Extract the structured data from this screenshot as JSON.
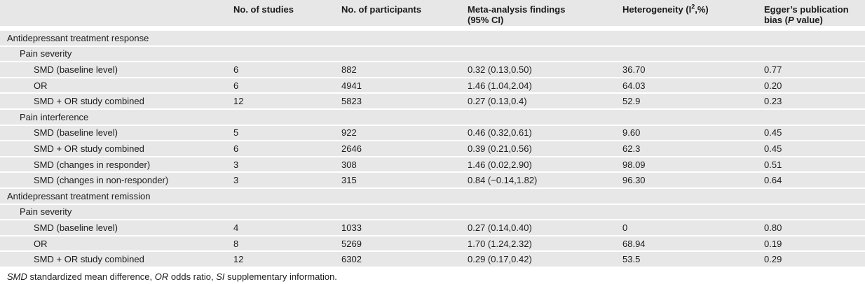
{
  "colors": {
    "row_background": "#e7e7e7",
    "separator": "#ffffff",
    "text": "#1c1c1c"
  },
  "header": {
    "col_label": "",
    "col_studies": "No. of studies",
    "col_participants": "No. of participants",
    "col_findings_line1": "Meta-analysis findings",
    "col_findings_line2": "(95% CI)",
    "col_het_pre": "Heterogeneity (I",
    "col_het_sup": "2",
    "col_het_post": ",%)",
    "col_egger_line1": "Egger’s publication",
    "col_egger_line2_pre": "bias (",
    "col_egger_italic": "P",
    "col_egger_line2_post": " value)"
  },
  "rows": [
    {
      "level": 0,
      "label": "Antidepressant treatment response",
      "studies": "",
      "participants": "",
      "findings": "",
      "heterogeneity": "",
      "egger": ""
    },
    {
      "level": 1,
      "label": "Pain severity",
      "studies": "",
      "participants": "",
      "findings": "",
      "heterogeneity": "",
      "egger": ""
    },
    {
      "level": 2,
      "label": "SMD (baseline level)",
      "studies": "6",
      "participants": "882",
      "findings": "0.32 (0.13,0.50)",
      "heterogeneity": "36.70",
      "egger": "0.77"
    },
    {
      "level": 2,
      "label": "OR",
      "studies": "6",
      "participants": "4941",
      "findings": "1.46 (1.04,2.04)",
      "heterogeneity": "64.03",
      "egger": "0.20"
    },
    {
      "level": 2,
      "label": "SMD + OR study combined",
      "studies": "12",
      "participants": "5823",
      "findings": "0.27 (0.13,0.4)",
      "heterogeneity": "52.9",
      "egger": "0.23"
    },
    {
      "level": 1,
      "label": "Pain interference",
      "studies": "",
      "participants": "",
      "findings": "",
      "heterogeneity": "",
      "egger": ""
    },
    {
      "level": 2,
      "label": "SMD (baseline level)",
      "studies": "5",
      "participants": "922",
      "findings": "0.46 (0.32,0.61)",
      "heterogeneity": "9.60",
      "egger": "0.45"
    },
    {
      "level": 2,
      "label": "SMD + OR study combined",
      "studies": "6",
      "participants": "2646",
      "findings": "0.39 (0.21,0.56)",
      "heterogeneity": "62.3",
      "egger": "0.45"
    },
    {
      "level": 2,
      "label": "SMD (changes in responder)",
      "studies": "3",
      "participants": "308",
      "findings": "1.46 (0.02,2.90)",
      "heterogeneity": "98.09",
      "egger": "0.51"
    },
    {
      "level": 2,
      "label": "SMD (changes in non-responder)",
      "studies": "3",
      "participants": "315",
      "findings": "0.84 (−0.14,1.82)",
      "heterogeneity": "96.30",
      "egger": "0.64"
    },
    {
      "level": 0,
      "label": "Antidepressant treatment remission",
      "studies": "",
      "participants": "",
      "findings": "",
      "heterogeneity": "",
      "egger": ""
    },
    {
      "level": 1,
      "label": "Pain severity",
      "studies": "",
      "participants": "",
      "findings": "",
      "heterogeneity": "",
      "egger": ""
    },
    {
      "level": 2,
      "label": "SMD (baseline level)",
      "studies": "4",
      "participants": "1033",
      "findings": "0.27 (0.14,0.40)",
      "heterogeneity": "0",
      "egger": "0.80"
    },
    {
      "level": 2,
      "label": "OR",
      "studies": "8",
      "participants": "5269",
      "findings": "1.70 (1.24,2.32)",
      "heterogeneity": "68.94",
      "egger": "0.19"
    },
    {
      "level": 2,
      "label": "SMD + OR study combined",
      "studies": "12",
      "participants": "6302",
      "findings": "0.29 (0.17,0.42)",
      "heterogeneity": "53.5",
      "egger": "0.29"
    }
  ],
  "footnote": {
    "parts": [
      {
        "t": "SMD",
        "italic": true
      },
      {
        "t": " standardized mean difference, ",
        "italic": false
      },
      {
        "t": "OR",
        "italic": true
      },
      {
        "t": " odds ratio, ",
        "italic": false
      },
      {
        "t": "SI",
        "italic": true
      },
      {
        "t": " supplementary information.",
        "italic": false
      }
    ]
  }
}
